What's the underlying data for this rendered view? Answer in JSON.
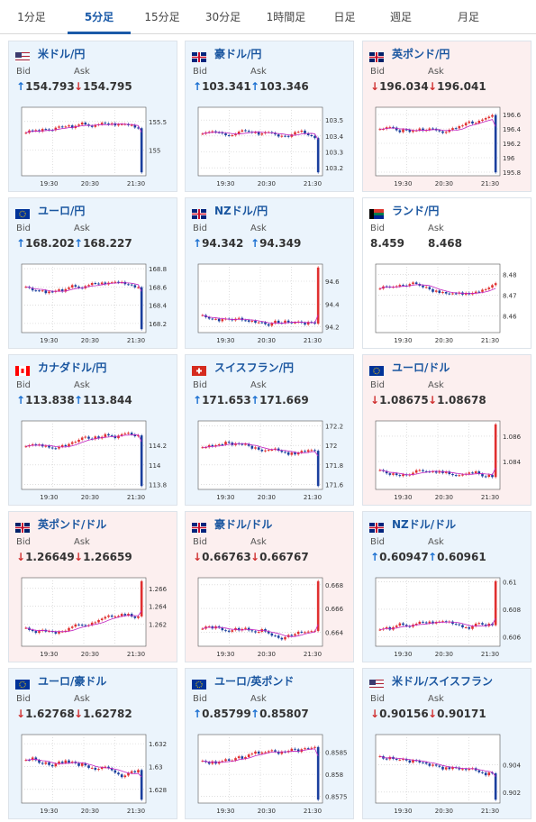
{
  "tabs": [
    {
      "label": "1分足",
      "active": false
    },
    {
      "label": "5分足",
      "active": true
    },
    {
      "label": "15分足",
      "active": false
    },
    {
      "label": "30分足",
      "active": false
    },
    {
      "label": "1時間足",
      "active": false
    },
    {
      "label": "日足",
      "active": false
    },
    {
      "label": "週足",
      "active": false
    },
    {
      "label": "月足",
      "active": false
    }
  ],
  "labels": {
    "bid": "Bid",
    "ask": "Ask"
  },
  "colors": {
    "up_arrow": "#1a6fd1",
    "down_arrow": "#d03030",
    "up_bg": "#ebf4fc",
    "down_bg": "#fcefef",
    "bull_candle": "#e03030",
    "bear_candle": "#1a3f9e",
    "ma_line": "#c020c0"
  },
  "pairs": [
    {
      "name": "米ドル/円",
      "flag": "us-jp",
      "state": "up",
      "bid_dir": "up",
      "ask_dir": "down",
      "bid": "154.793",
      "ask": "154.795",
      "y_ticks": [
        "155.5",
        "155"
      ],
      "y_range": [
        154.55,
        155.75
      ],
      "spike": "down"
    },
    {
      "name": "豪ドル/円",
      "flag": "au-jp",
      "state": "up",
      "bid_dir": "up",
      "ask_dir": "up",
      "bid": "103.341",
      "ask": "103.346",
      "y_ticks": [
        "103.5",
        "103.4",
        "103.3",
        "103.2"
      ],
      "y_range": [
        103.15,
        103.58
      ],
      "spike": "down"
    },
    {
      "name": "英ポンド/円",
      "flag": "gb-jp",
      "state": "down",
      "bid_dir": "down",
      "ask_dir": "down",
      "bid": "196.034",
      "ask": "196.041",
      "y_ticks": [
        "196.6",
        "196.4",
        "196.2",
        "196",
        "195.8"
      ],
      "y_range": [
        195.75,
        196.7
      ],
      "spike": "down"
    },
    {
      "name": "ユーロ/円",
      "flag": "eu-jp",
      "state": "up",
      "bid_dir": "up",
      "ask_dir": "up",
      "bid": "168.202",
      "ask": "168.227",
      "y_ticks": [
        "168.8",
        "168.6",
        "168.4",
        "168.2"
      ],
      "y_range": [
        168.1,
        168.85
      ],
      "spike": "down"
    },
    {
      "name": "NZドル/円",
      "flag": "nz-jp",
      "state": "up",
      "bid_dir": "up",
      "ask_dir": "up",
      "bid": "94.342",
      "ask": "94.349",
      "y_ticks": [
        "94.6",
        "94.4",
        "94.2"
      ],
      "y_range": [
        94.15,
        94.75
      ],
      "spike": "up"
    },
    {
      "name": "ランド/円",
      "flag": "za-jp",
      "state": "neutral",
      "bid_dir": "none",
      "ask_dir": "none",
      "bid": "8.459",
      "ask": "8.468",
      "y_ticks": [
        "8.48",
        "8.47",
        "8.46"
      ],
      "y_range": [
        8.452,
        8.485
      ],
      "spike": "none"
    },
    {
      "name": "カナダドル/円",
      "flag": "ca-jp",
      "state": "up",
      "bid_dir": "up",
      "ask_dir": "up",
      "bid": "113.838",
      "ask": "113.844",
      "y_ticks": [
        "114.2",
        "114",
        "113.8"
      ],
      "y_range": [
        113.75,
        114.45
      ],
      "spike": "down"
    },
    {
      "name": "スイスフラン/円",
      "flag": "ch-jp",
      "state": "up",
      "bid_dir": "up",
      "ask_dir": "up",
      "bid": "171.653",
      "ask": "171.669",
      "y_ticks": [
        "172.2",
        "172",
        "171.8",
        "171.6"
      ],
      "y_range": [
        171.55,
        172.25
      ],
      "spike": "down"
    },
    {
      "name": "ユーロ/ドル",
      "flag": "eu-us",
      "state": "down",
      "bid_dir": "down",
      "ask_dir": "down",
      "bid": "1.08675",
      "ask": "1.08678",
      "y_ticks": [
        "1.086",
        "1.084"
      ],
      "y_range": [
        1.0818,
        1.0872
      ],
      "spike": "up"
    },
    {
      "name": "英ポンド/ドル",
      "flag": "gb-us",
      "state": "down",
      "bid_dir": "down",
      "ask_dir": "down",
      "bid": "1.26649",
      "ask": "1.26659",
      "y_ticks": [
        "1.266",
        "1.264",
        "1.262"
      ],
      "y_range": [
        1.2595,
        1.2672
      ],
      "spike": "up"
    },
    {
      "name": "豪ドル/ドル",
      "flag": "au-us",
      "state": "down",
      "bid_dir": "down",
      "ask_dir": "down",
      "bid": "0.66763",
      "ask": "0.66767",
      "y_ticks": [
        "0.668",
        "0.666",
        "0.664"
      ],
      "y_range": [
        0.6628,
        0.6686
      ],
      "spike": "up"
    },
    {
      "name": "NZドル/ドル",
      "flag": "nz-us",
      "state": "up",
      "bid_dir": "up",
      "ask_dir": "up",
      "bid": "0.60947",
      "ask": "0.60961",
      "y_ticks": [
        "0.61",
        "0.608",
        "0.606"
      ],
      "y_range": [
        0.6053,
        0.6103
      ],
      "spike": "up"
    },
    {
      "name": "ユーロ/豪ドル",
      "flag": "eu-au",
      "state": "up",
      "bid_dir": "down",
      "ask_dir": "down",
      "bid": "1.62768",
      "ask": "1.62782",
      "y_ticks": [
        "1.632",
        "1.63",
        "1.628"
      ],
      "y_range": [
        1.6268,
        1.6328
      ],
      "spike": "down"
    },
    {
      "name": "ユーロ/英ポンド",
      "flag": "eu-gb",
      "state": "up",
      "bid_dir": "up",
      "ask_dir": "up",
      "bid": "0.85799",
      "ask": "0.85807",
      "y_ticks": [
        "0.8585",
        "0.858",
        "0.8575"
      ],
      "y_range": [
        0.85735,
        0.8589
      ],
      "spike": "down"
    },
    {
      "name": "米ドル/スイスフラン",
      "flag": "us-ch",
      "state": "up",
      "bid_dir": "down",
      "ask_dir": "down",
      "bid": "0.90156",
      "ask": "0.90171",
      "y_ticks": [
        "0.904",
        "0.902"
      ],
      "y_range": [
        0.9012,
        0.9062
      ],
      "spike": "down"
    }
  ],
  "x_ticks": [
    "19:30",
    "20:30",
    "21:30"
  ]
}
